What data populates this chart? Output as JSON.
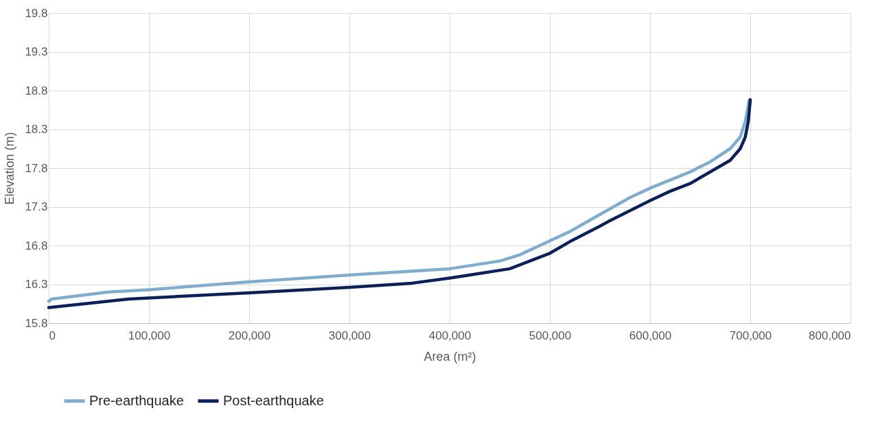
{
  "chart_data": {
    "type": "line",
    "xlabel": "Area (m²)",
    "ylabel": "Elevation (m)",
    "xlim": [
      0,
      800000
    ],
    "xticks": [
      {
        "value": 0,
        "label": "0"
      },
      {
        "value": 100000,
        "label": "100,000"
      },
      {
        "value": 200000,
        "label": "200,000"
      },
      {
        "value": 300000,
        "label": "300,000"
      },
      {
        "value": 400000,
        "label": "400,000"
      },
      {
        "value": 500000,
        "label": "500,000"
      },
      {
        "value": 600000,
        "label": "600,000"
      },
      {
        "value": 700000,
        "label": "700,000"
      },
      {
        "value": 800000,
        "label": "800,000"
      }
    ],
    "ylim": [
      15.8,
      19.8
    ],
    "yticks": [
      15.8,
      16.3,
      16.8,
      17.3,
      17.8,
      18.3,
      18.8,
      19.3,
      19.8
    ],
    "grid": true,
    "legend": "bottom",
    "marker": "none",
    "line_style": "solid",
    "series": [
      {
        "name": "Pre-earthquake",
        "color": "#7fadd0",
        "x": [
          0,
          3000,
          60000,
          100000,
          200000,
          300000,
          400000,
          450000,
          470000,
          490000,
          520000,
          550000,
          580000,
          600000,
          640000,
          660000,
          680000,
          690000,
          695000,
          699000
        ],
        "values": [
          16.08,
          16.11,
          16.2,
          16.23,
          16.33,
          16.42,
          16.5,
          16.6,
          16.68,
          16.8,
          16.98,
          17.2,
          17.42,
          17.54,
          17.75,
          17.88,
          18.05,
          18.2,
          18.4,
          18.68
        ]
      },
      {
        "name": "Post-earthquake",
        "color": "#0b1f5c",
        "x": [
          0,
          80000,
          200000,
          300000,
          360000,
          400000,
          420000,
          460000,
          480000,
          500000,
          520000,
          550000,
          560000,
          600000,
          620000,
          640000,
          680000,
          690000,
          695000,
          698000,
          700000
        ],
        "values": [
          16.0,
          16.11,
          16.19,
          16.26,
          16.31,
          16.38,
          16.42,
          16.5,
          16.6,
          16.7,
          16.85,
          17.05,
          17.12,
          17.38,
          17.5,
          17.6,
          17.9,
          18.05,
          18.2,
          18.4,
          18.68
        ]
      }
    ]
  }
}
